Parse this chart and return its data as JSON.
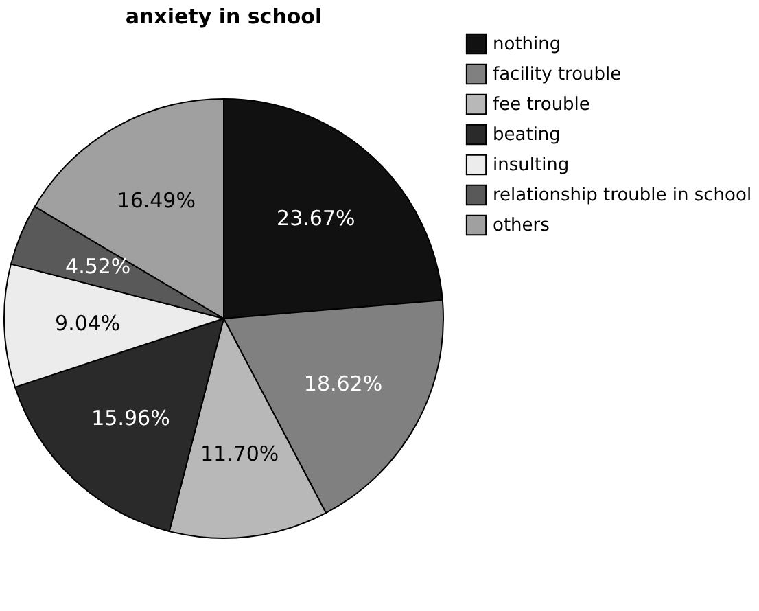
{
  "chart_data": {
    "type": "pie",
    "title": "anxiety in school",
    "categories": [
      "nothing",
      "facility trouble",
      "fee trouble",
      "beating",
      "insulting",
      "relationship trouble in school",
      "others"
    ],
    "values": [
      23.67,
      18.62,
      11.7,
      15.96,
      9.04,
      4.52,
      16.49
    ],
    "value_labels": [
      "23.67%",
      "18.62%",
      "11.70%",
      "15.96%",
      "9.04%",
      "4.52%",
      "16.49%"
    ],
    "colors": [
      "#111111",
      "#808080",
      "#b8b8b8",
      "#2a2a2a",
      "#ececec",
      "#595959",
      "#a0a0a0"
    ],
    "legend": "top right"
  }
}
